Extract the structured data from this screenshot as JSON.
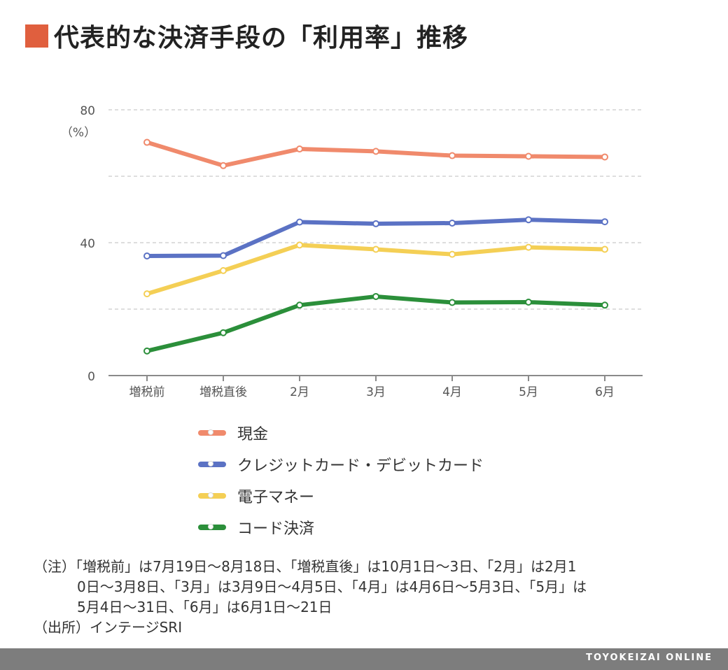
{
  "title": "代表的な決済手段の「利用率」推移",
  "chart_data": {
    "type": "line",
    "categories": [
      "増税前",
      "増税直後",
      "2月",
      "3月",
      "4月",
      "5月",
      "6月"
    ],
    "ylim": [
      0,
      80
    ],
    "y_ticks": [
      "0",
      "40",
      "80"
    ],
    "y_unit": "（%）",
    "grid": "horizontal dashed, every 20",
    "legend_position": "bottom",
    "series": [
      {
        "name": "現金",
        "color": "#f08a6c",
        "values": [
          70.2,
          63.2,
          68.2,
          67.5,
          66.2,
          66.0,
          65.8
        ]
      },
      {
        "name": "クレジットカード・デビットカード",
        "color": "#5b72c4",
        "values": [
          36.0,
          36.1,
          46.2,
          45.7,
          45.9,
          46.9,
          46.3
        ]
      },
      {
        "name": "電子マネー",
        "color": "#f4cf55",
        "values": [
          24.6,
          31.6,
          39.3,
          38.0,
          36.5,
          38.6,
          38.0
        ]
      },
      {
        "name": "コード決済",
        "color": "#2b8f3a",
        "values": [
          7.4,
          12.9,
          21.2,
          23.8,
          22.0,
          22.1,
          21.2
        ]
      }
    ]
  },
  "notes": {
    "line1": "（注）「増税前」は7月19日～8月18日、「増税直後」は10月1日～3日、「2月」は2月1",
    "line2": "0日～3月8日、「3月」は3月9日～4月5日、「4月」は4月6日～5月3日、「5月」は",
    "line3": "5月4日～31日、「6月」は6月1日～21日",
    "source": "（出所）インテージSRI"
  },
  "footer": "TOYOKEIZAI ONLINE"
}
